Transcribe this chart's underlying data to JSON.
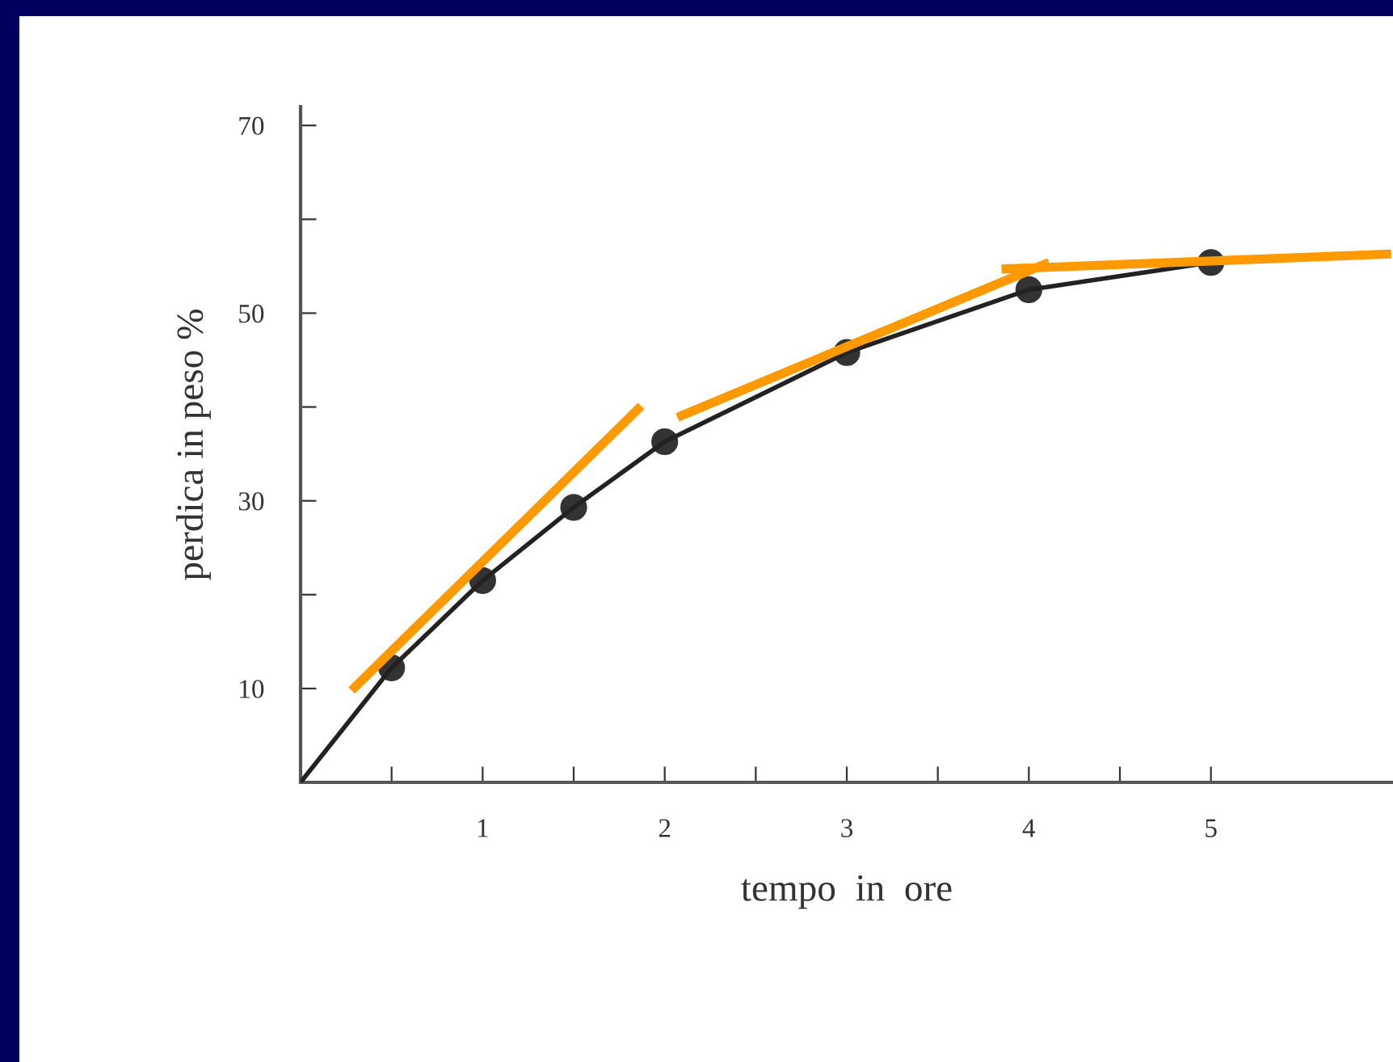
{
  "chart_data": {
    "type": "line",
    "xlabel": "tempo  in  ore",
    "ylabel": "perdica in peso %",
    "xlim": [
      0,
      6
    ],
    "ylim": [
      0,
      72
    ],
    "xticks": [
      {
        "value": 0.5,
        "label": null
      },
      1,
      {
        "value": 1.5,
        "label": null
      },
      2,
      {
        "value": 2.5,
        "label": null
      },
      3,
      {
        "value": 3.5,
        "label": null
      },
      4,
      {
        "value": 4.5,
        "label": null
      },
      5
    ],
    "yticks": [
      10,
      {
        "value": 20,
        "label": null
      },
      30,
      {
        "value": 40,
        "label": null
      },
      50,
      {
        "value": 60,
        "label": null
      },
      70
    ],
    "grid": false,
    "legend": false,
    "series": [
      {
        "color": "#222222",
        "x": [
          0,
          0.5,
          1,
          1.5,
          2,
          3,
          4,
          5
        ],
        "values": [
          0,
          12.2,
          21.5,
          29.3,
          36.3,
          45.8,
          52.5,
          55.4
        ],
        "marker": "none"
      },
      {
        "type": "scatter",
        "color": "#333333",
        "x": [
          0.5,
          1,
          1.5,
          2,
          3,
          4,
          5
        ],
        "values": [
          12.2,
          21.5,
          29.3,
          36.3,
          45.8,
          52.5,
          55.4
        ],
        "marker": "circle"
      },
      {
        "color": "#ff9900",
        "x": [
          0.28,
          1.87
        ],
        "values": [
          9.8,
          40.1
        ],
        "marker": "none"
      },
      {
        "color": "#ff9900",
        "x": [
          2.07,
          4.11
        ],
        "values": [
          38.9,
          55.4
        ],
        "marker": "none"
      },
      {
        "color": "#ff9900",
        "x": [
          3.85,
          5.99
        ],
        "values": [
          54.7,
          56.3
        ],
        "marker": "none"
      }
    ]
  }
}
